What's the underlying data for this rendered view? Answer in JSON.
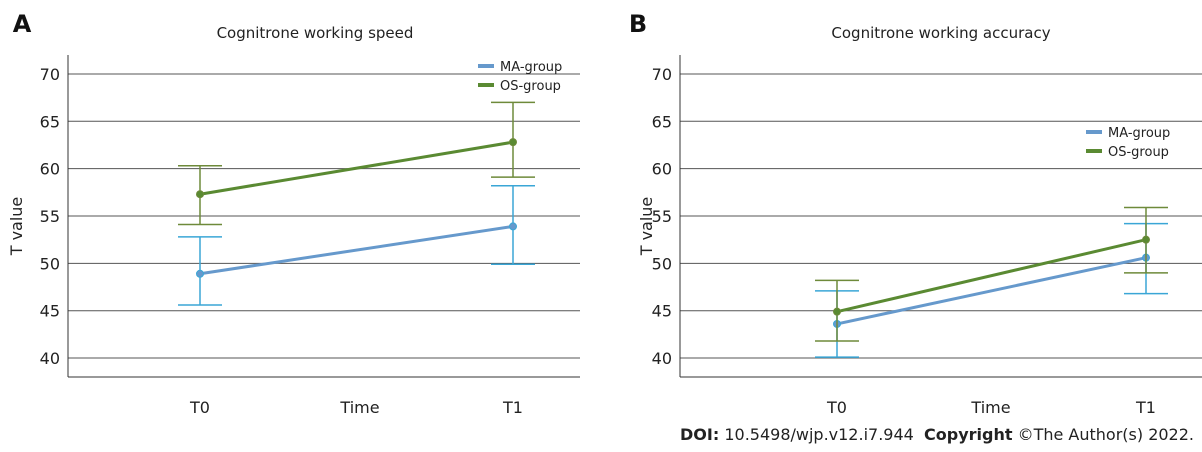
{
  "footer": {
    "doi_label": "DOI:",
    "doi_value": "10.5498/wjp.v12.i7.944",
    "copyright_label": "Copyright",
    "copyright_value": "©The Author(s) 2022."
  },
  "chart_data": [
    {
      "panel_label": "A",
      "type": "line",
      "title": "Cognitrone working speed",
      "xlabel": "Time",
      "ylabel": "T value",
      "categories": [
        "T0",
        "T1"
      ],
      "ylim": [
        38,
        72
      ],
      "yticks": [
        40,
        45,
        50,
        55,
        60,
        65,
        70
      ],
      "grid": true,
      "legend_position": "top-right",
      "series": [
        {
          "name": "MA-group",
          "color": "#6699cc",
          "error_color": "#3aa6d6",
          "values": [
            48.9,
            53.9
          ],
          "err_low": [
            45.6,
            49.9
          ],
          "err_high": [
            52.8,
            58.2
          ]
        },
        {
          "name": "OS-group",
          "color": "#5a8a32",
          "error_color": "#6e8a3a",
          "values": [
            57.3,
            62.8
          ],
          "err_low": [
            54.1,
            59.1
          ],
          "err_high": [
            60.3,
            67.0
          ]
        }
      ]
    },
    {
      "panel_label": "B",
      "type": "line",
      "title": "Cognitrone working accuracy",
      "xlabel": "Time",
      "ylabel": "T value",
      "categories": [
        "T0",
        "T1"
      ],
      "ylim": [
        38,
        72
      ],
      "yticks": [
        40,
        45,
        50,
        55,
        60,
        65,
        70
      ],
      "grid": true,
      "legend_position": "right",
      "series": [
        {
          "name": "MA-group",
          "color": "#6699cc",
          "error_color": "#3aa6d6",
          "values": [
            43.6,
            50.6
          ],
          "err_low": [
            40.1,
            46.8
          ],
          "err_high": [
            47.1,
            54.2
          ]
        },
        {
          "name": "OS-group",
          "color": "#5a8a32",
          "error_color": "#6e8a3a",
          "values": [
            44.9,
            52.5
          ],
          "err_low": [
            41.8,
            49.0
          ],
          "err_high": [
            48.2,
            55.9
          ]
        }
      ]
    }
  ]
}
